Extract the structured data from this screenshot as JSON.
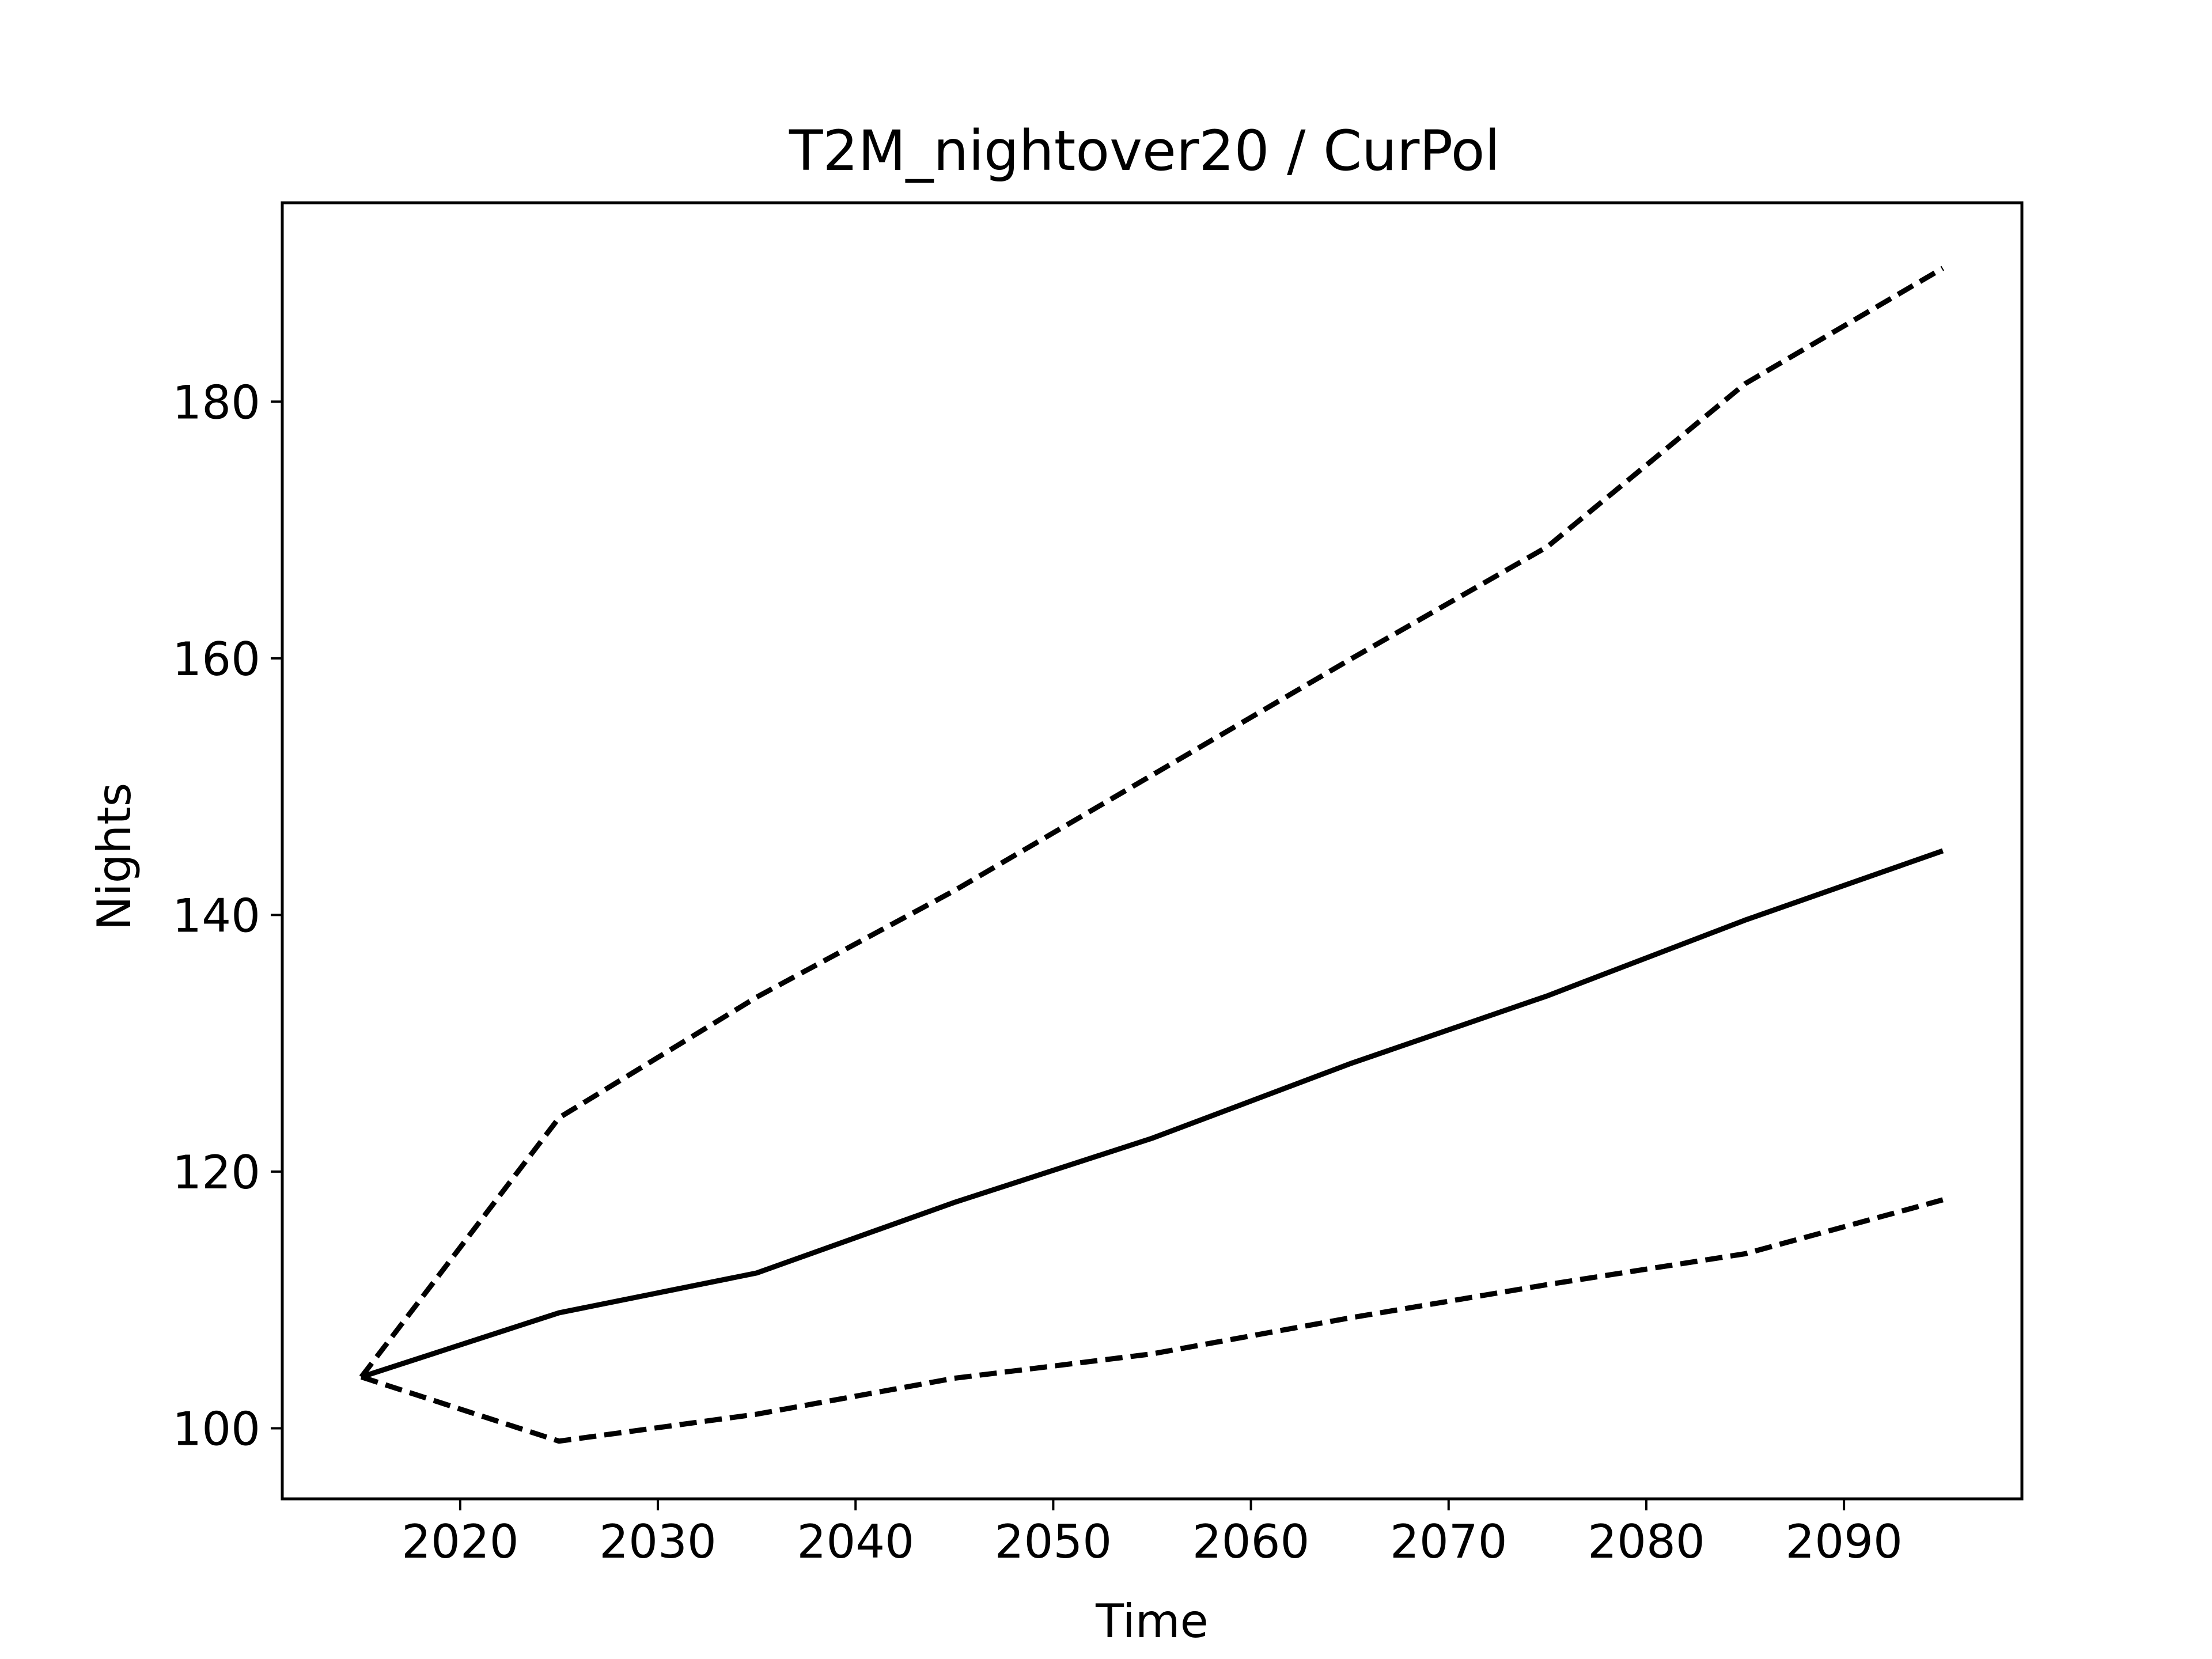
{
  "chart_data": {
    "type": "line",
    "title": "T2M_nightover20 / CurPol",
    "xlabel": "Time",
    "ylabel": "Nights",
    "xlim": [
      2011,
      2099
    ],
    "ylim": [
      94.5,
      195.5
    ],
    "xticks": [
      2020,
      2030,
      2040,
      2050,
      2060,
      2070,
      2080,
      2090
    ],
    "yticks": [
      100,
      120,
      140,
      160,
      180
    ],
    "x": [
      2015,
      2025,
      2035,
      2045,
      2055,
      2065,
      2075,
      2085,
      2095
    ],
    "series": [
      {
        "style": "solid",
        "values": [
          104.0,
          109.0,
          112.1,
          117.6,
          122.6,
          128.4,
          133.7,
          139.6,
          145.0
        ]
      },
      {
        "style": "dashed",
        "values": [
          104.0,
          124.2,
          133.6,
          141.9,
          150.9,
          159.9,
          168.7,
          181.4,
          190.4
        ]
      },
      {
        "style": "dashed",
        "values": [
          104.0,
          99.0,
          101.1,
          103.9,
          105.8,
          108.6,
          111.2,
          113.6,
          117.8
        ]
      }
    ],
    "grid": false,
    "line_color": "#000000"
  }
}
